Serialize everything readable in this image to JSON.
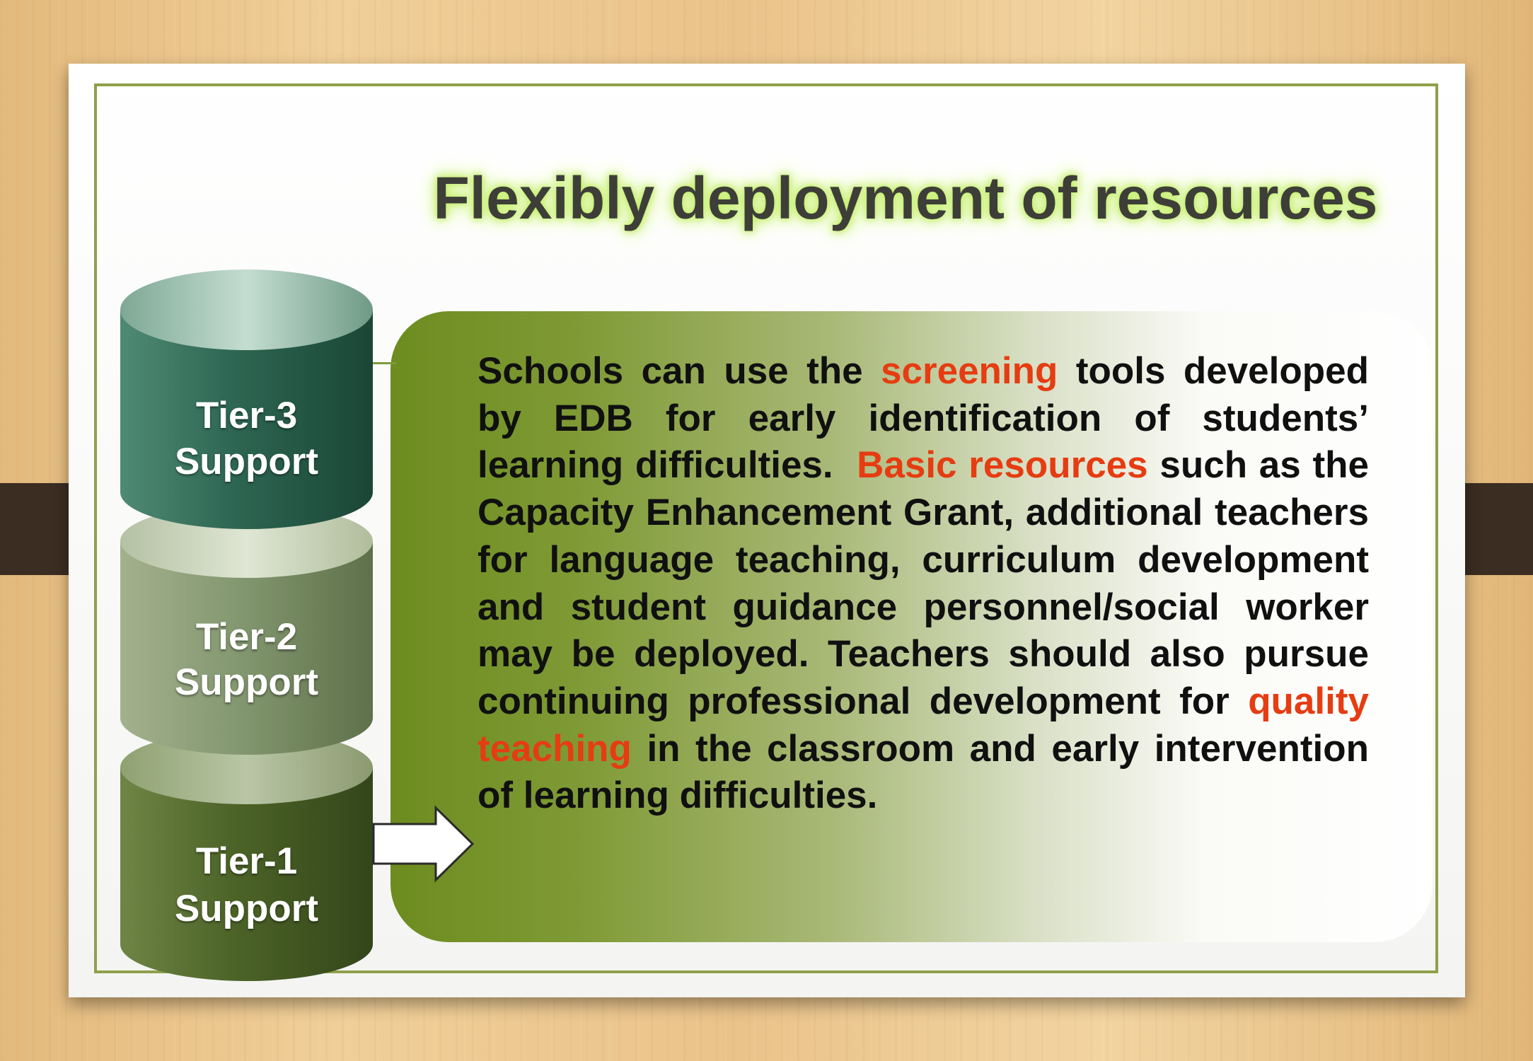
{
  "slide": {
    "title": "Flexibly deployment of resources",
    "body": {
      "segments": [
        {
          "text": "Schools can use the ",
          "highlight": false
        },
        {
          "text": "screening",
          "highlight": true
        },
        {
          "text": " tools developed by EDB for early identification of students’ learning difficulties.  ",
          "highlight": false
        },
        {
          "text": "Basic resources",
          "highlight": true
        },
        {
          "text": " such as the Capacity Enhancement Grant, additional teachers for language teaching, curriculum development and student guidance personnel/social worker may be deployed. Teachers should also pursue continuing professional development for ",
          "highlight": false
        },
        {
          "text": "quality teaching",
          "highlight": true
        },
        {
          "text": " in the classroom and early intervention of learning difficulties.",
          "highlight": false
        }
      ]
    },
    "tiers": [
      {
        "line1": "Tier-3",
        "line2": "Support"
      },
      {
        "line1": "Tier-2",
        "line2": "Support"
      },
      {
        "line1": "Tier-1",
        "line2": "Support"
      }
    ],
    "colors": {
      "highlight": "#e63c12",
      "title_glow": "#c4ef6c",
      "frame": "#8fa04a",
      "tier3": "#2e6a56",
      "tier2": "#879a6c",
      "tier1": "#4e6428"
    }
  }
}
